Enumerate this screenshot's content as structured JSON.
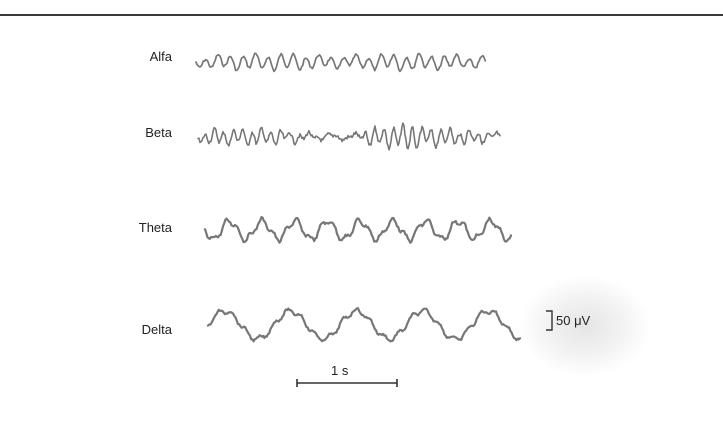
{
  "figure": {
    "traces": [
      {
        "id": "alfa",
        "label": "Alfa"
      },
      {
        "id": "beta",
        "label": "Beta"
      },
      {
        "id": "theta",
        "label": "Theta"
      },
      {
        "id": "delta",
        "label": "Delta"
      }
    ],
    "time_scale": {
      "label": "1 s"
    },
    "voltage_scale": {
      "label": "50 μV"
    },
    "colors": {
      "trace": "#777777",
      "rule": "#3a3a3a",
      "text": "#222222"
    }
  }
}
